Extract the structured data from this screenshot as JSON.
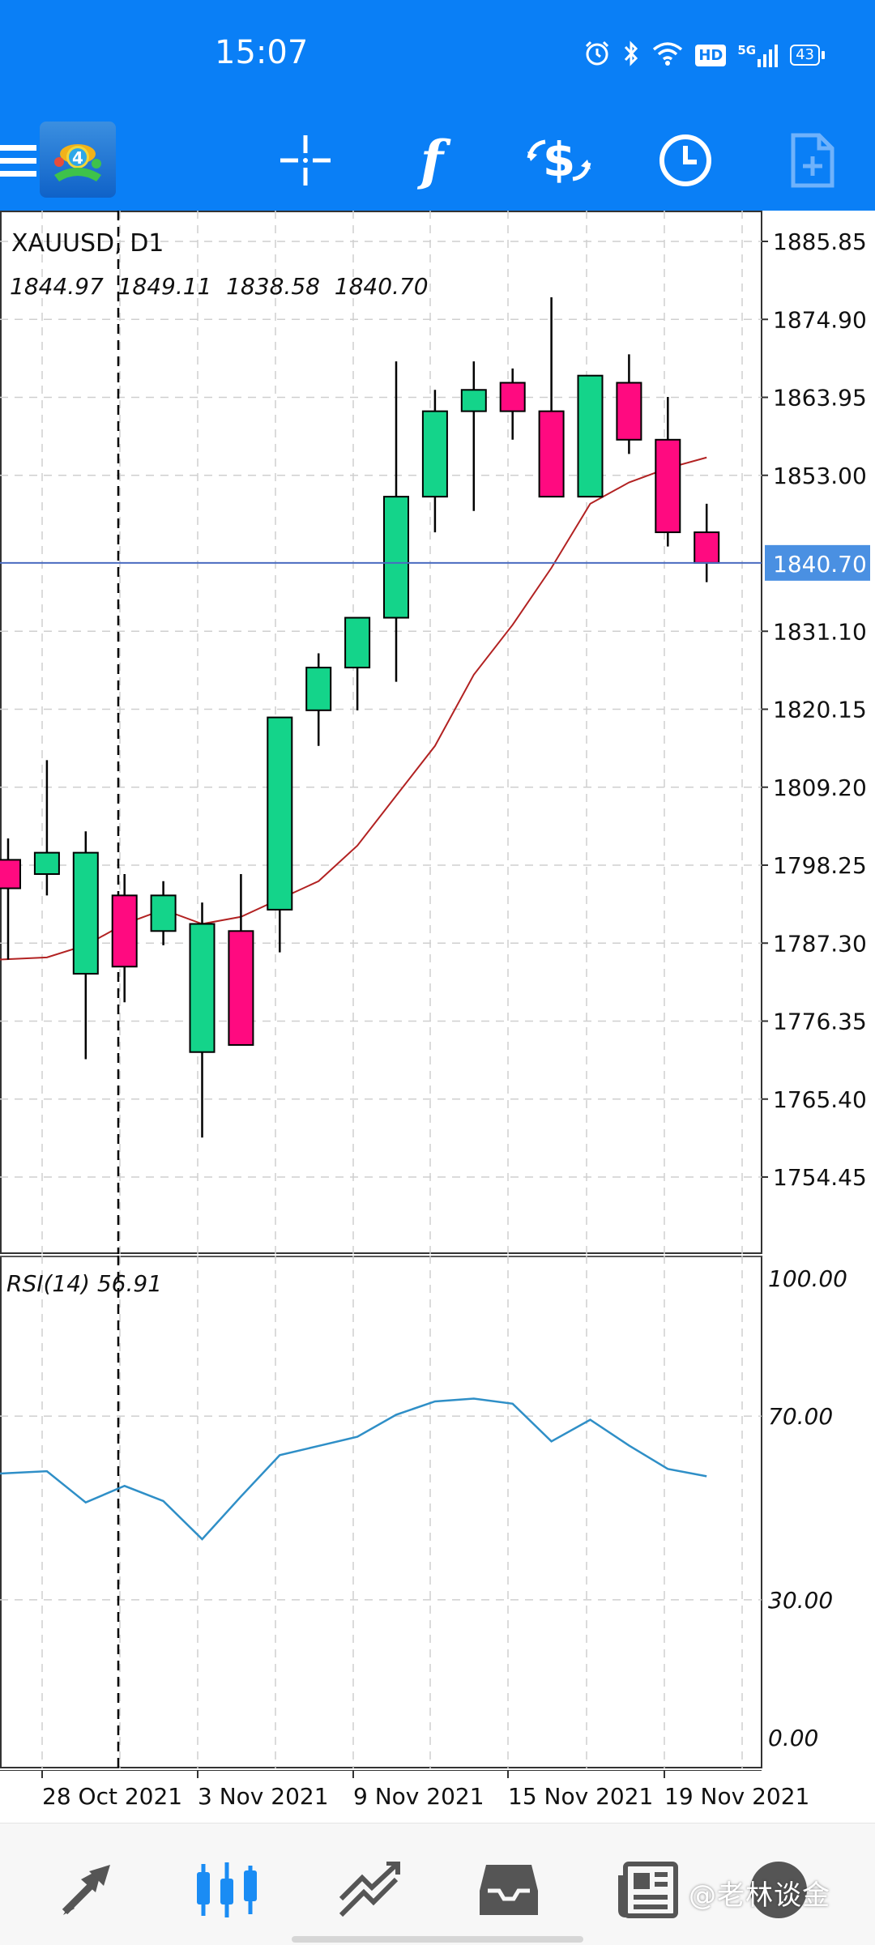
{
  "status_bar": {
    "time": "15:07",
    "icons": [
      "alarm-icon",
      "bluetooth-icon",
      "wifi-icon",
      "hd-icon",
      "5g-signal-icon",
      "battery-icon"
    ],
    "hd_label": "HD",
    "network": "5G",
    "battery": "43"
  },
  "toolbar": {
    "items": [
      "menu-icon",
      "mt4-logo-icon",
      "crosshair-icon",
      "indicators-icon",
      "trade-icon",
      "timeframe-icon",
      "objects-icon"
    ],
    "indicator_glyph": "f"
  },
  "chart": {
    "symbol_label": "XAUUSD, D1",
    "ohlc_label": "1844.97  1849.11  1838.58  1840.70",
    "current_price_label": "1840.70",
    "rsi_label": "RSI(14) 56.91"
  },
  "chart_data": {
    "type": "candlestick",
    "symbol": "XAUUSD",
    "timeframe": "D1",
    "current_price": 1840.7,
    "price_axis_ticks": [
      "1885.85",
      "1874.90",
      "1863.95",
      "1853.00",
      "1831.10",
      "1820.15",
      "1809.20",
      "1798.25",
      "1787.30",
      "1776.35",
      "1765.40",
      "1754.45"
    ],
    "price_range": [
      1744.0,
      1891.0
    ],
    "date_labels": [
      "28 Oct 2021",
      "3 Nov 2021",
      "9 Nov 2021",
      "15 Nov 2021",
      "19 Nov 2021"
    ],
    "candles": [
      {
        "open": 1799.0,
        "high": 1802.0,
        "low": 1785.0,
        "close": 1795.0
      },
      {
        "open": 1797.0,
        "high": 1813.0,
        "low": 1794.0,
        "close": 1800.0
      },
      {
        "open": 1783.0,
        "high": 1803.0,
        "low": 1771.0,
        "close": 1800.0
      },
      {
        "open": 1794.0,
        "high": 1797.0,
        "low": 1779.0,
        "close": 1784.0
      },
      {
        "open": 1789.0,
        "high": 1796.0,
        "low": 1787.0,
        "close": 1794.0
      },
      {
        "open": 1772.0,
        "high": 1793.0,
        "low": 1760.0,
        "close": 1790.0
      },
      {
        "open": 1789.0,
        "high": 1797.0,
        "low": 1773.0,
        "close": 1773.0
      },
      {
        "open": 1792.0,
        "high": 1819.0,
        "low": 1786.0,
        "close": 1819.0
      },
      {
        "open": 1820.0,
        "high": 1828.0,
        "low": 1815.0,
        "close": 1826.0
      },
      {
        "open": 1826.0,
        "high": 1833.0,
        "low": 1820.0,
        "close": 1833.0
      },
      {
        "open": 1833.0,
        "high": 1869.0,
        "low": 1824.0,
        "close": 1850.0
      },
      {
        "open": 1850.0,
        "high": 1865.0,
        "low": 1845.0,
        "close": 1862.0
      },
      {
        "open": 1862.0,
        "high": 1869.0,
        "low": 1848.0,
        "close": 1865.0
      },
      {
        "open": 1866.0,
        "high": 1868.0,
        "low": 1858.0,
        "close": 1862.0
      },
      {
        "open": 1862.0,
        "high": 1878.0,
        "low": 1850.0,
        "close": 1850.0
      },
      {
        "open": 1850.0,
        "high": 1867.0,
        "low": 1850.0,
        "close": 1867.0
      },
      {
        "open": 1866.0,
        "high": 1870.0,
        "low": 1856.0,
        "close": 1858.0
      },
      {
        "open": 1858.0,
        "high": 1864.0,
        "low": 1843.0,
        "close": 1845.0
      },
      {
        "open": 1845.0,
        "high": 1849.0,
        "low": 1838.0,
        "close": 1840.7
      }
    ],
    "moving_average": {
      "color": "#b22222",
      "values": [
        1785.0,
        1785.3,
        1787.0,
        1790.0,
        1792.0,
        1790.0,
        1791.0,
        1793.5,
        1796.0,
        1801.0,
        1808.0,
        1815.0,
        1825.0,
        1832.0,
        1840.0,
        1849.0,
        1852.0,
        1854.0,
        1855.5
      ]
    },
    "rsi": {
      "period": 14,
      "current": 56.91,
      "levels": [
        30,
        70
      ],
      "range": [
        0,
        100
      ],
      "axis_ticks": [
        "100.00",
        "70.00",
        "30.00",
        "0.00"
      ],
      "color": "#2f8fc7",
      "values": [
        57.5,
        58.0,
        51.2,
        54.8,
        51.5,
        43.2,
        52.5,
        61.5,
        63.5,
        65.5,
        70.3,
        73.2,
        73.8,
        72.7,
        64.5,
        69.2,
        63.6,
        58.5,
        56.9
      ]
    },
    "colors": {
      "bull": "#14d48a",
      "bear": "#ff0a80",
      "price_line": "#4a6bc0"
    }
  },
  "bottom_nav": {
    "items": [
      "quotes-icon",
      "chart-icon",
      "trade-icon",
      "history-icon",
      "news-icon"
    ],
    "active": "chart-icon"
  },
  "watermark": "@老林谈金"
}
